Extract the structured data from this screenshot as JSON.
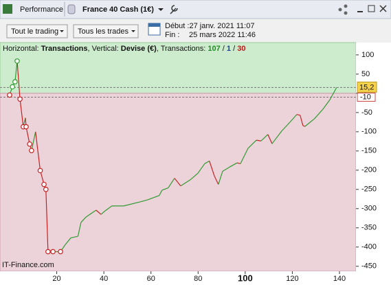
{
  "toolbar": {
    "tab": "Performance",
    "instrument": "France 40 Cash (1€)",
    "filter1": "Tout le trading",
    "filter2": "Tous les trades",
    "start": "Début :27 janv. 2021 11:07",
    "end_label": "Fin :",
    "end": "25 mars 2022 11:46"
  },
  "header": [
    "Horizontal: ",
    "Transactions",
    ", Vertical: ",
    "Devise (€)",
    ", Transactions: ",
    "107",
    " / ",
    "1",
    " / ",
    "30"
  ],
  "watermark": "IT-Finance.com",
  "chart_data": {
    "type": "line",
    "x": [
      0,
      1.2,
      2.3,
      3.2,
      4.4,
      5.8,
      6.7,
      7,
      8.5,
      9.3,
      11,
      13,
      14.6,
      15.4,
      16.3,
      18.4,
      21.6,
      23.6,
      26,
      29,
      30.3,
      32.4,
      36.7,
      38.8,
      40.5,
      43.4,
      48.4,
      55.7,
      58.6,
      63.5,
      64.7,
      67.3,
      70,
      72.6,
      76.7,
      79.9,
      82.8,
      84.8,
      86.9,
      88.6,
      90.4,
      93.3,
      96.5,
      98,
      101.2,
      104.7,
      106.7,
      109.6,
      111.4,
      115.5,
      119,
      121.9,
      123.3,
      124.5,
      125.4,
      129.4,
      132.9,
      135.9,
      138.8
    ],
    "series": [
      {
        "values": [
          -4.5,
          17,
          30,
          84,
          -15,
          -87,
          -64,
          -87,
          -132,
          -149,
          -100,
          -201,
          -237,
          -250,
          -412,
          -412,
          -412,
          -394,
          -376,
          -372,
          -336,
          -322,
          -304,
          -315,
          -306,
          -293,
          -293,
          -282,
          -277,
          -266,
          -252,
          -246,
          -221,
          -241,
          -225,
          -208,
          -183,
          -176,
          -215,
          -237,
          -203,
          -192,
          -181,
          -183,
          -143,
          -122,
          -124,
          -107,
          -131,
          -98,
          -75,
          -55,
          -57,
          -84,
          -86,
          -66,
          -42,
          -17,
          15.2
        ]
      }
    ],
    "markers_x": [
      0,
      1.2,
      2.3,
      3.2,
      4.4,
      5.8,
      7,
      8.5,
      9.3,
      13,
      14.6,
      15.4,
      16.3,
      18.4,
      21.6
    ],
    "up_color": "#2f9a2f",
    "down_color": "#c62020",
    "last_value": {
      "value": 15.2,
      "label": "15,2"
    },
    "reference_line": -10,
    "xlim": [
      -4.08,
      147
    ],
    "ylim": [
      -463,
      132
    ],
    "xticks": [
      20,
      40,
      60,
      80,
      100,
      120,
      140
    ],
    "yticks": [
      100,
      50,
      0,
      -50,
      -100,
      -150,
      -200,
      -250,
      -300,
      -350,
      -400,
      -450
    ]
  }
}
